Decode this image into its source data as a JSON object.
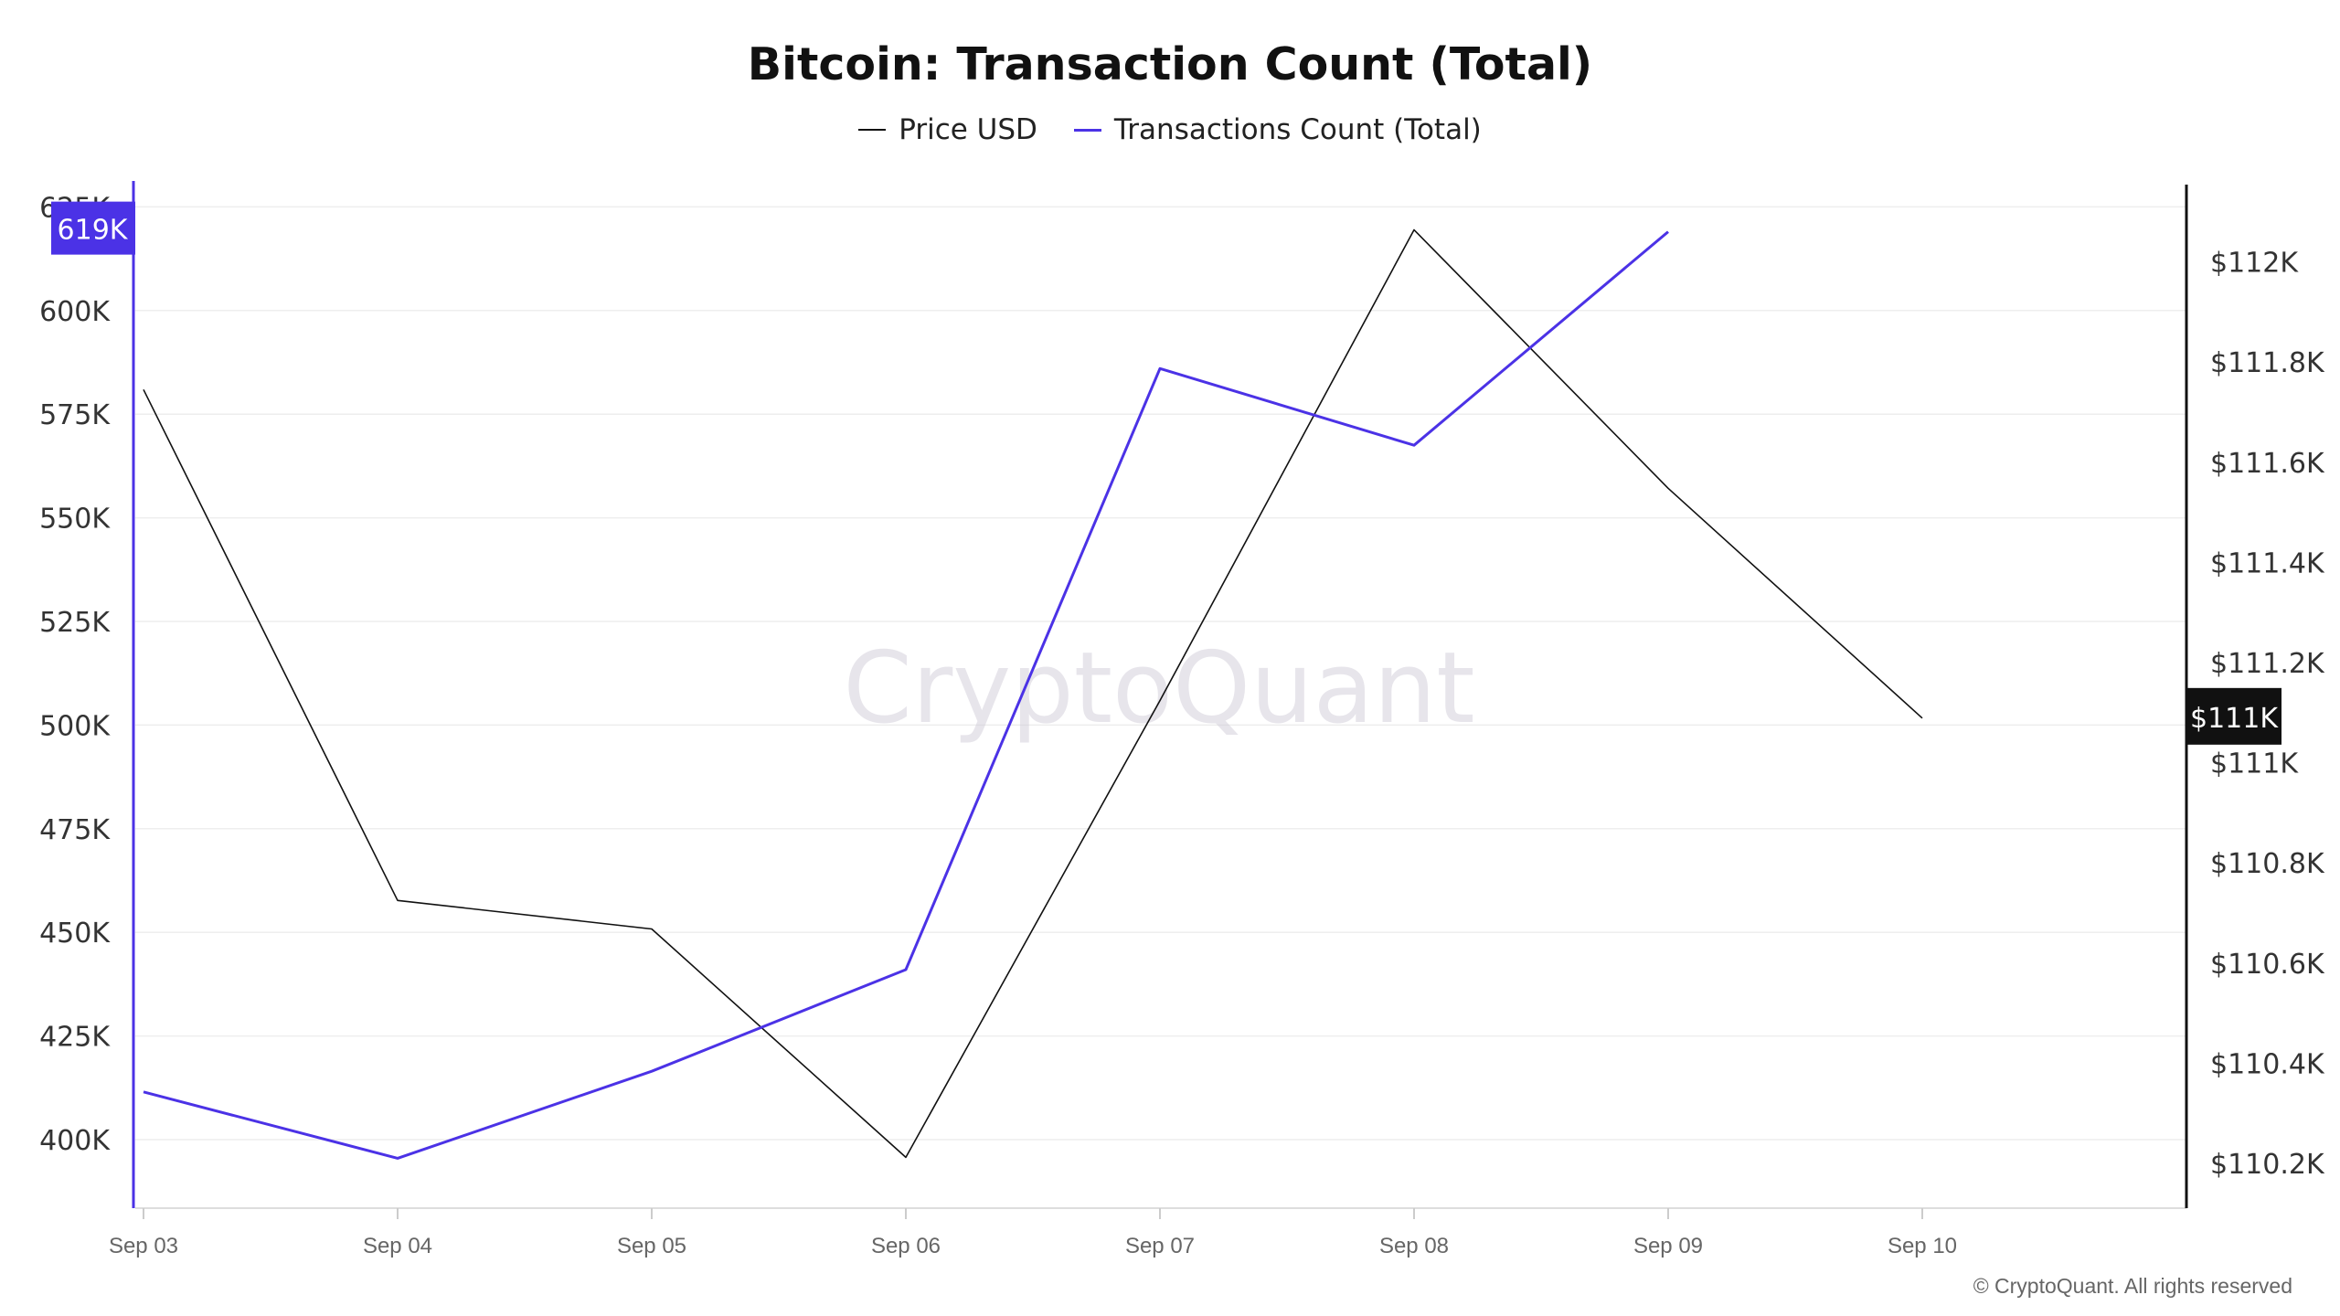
{
  "chart_data": {
    "type": "line",
    "title": "Bitcoin: Transaction Count (Total)",
    "categories": [
      "Sep 03",
      "Sep 04",
      "Sep 05",
      "Sep 06",
      "Sep 07",
      "Sep 08",
      "Sep 09",
      "Sep 10"
    ],
    "series": [
      {
        "name": "Price USD",
        "axis": "right",
        "color": "#111111",
        "values": [
          111745,
          110725,
          110668,
          110212,
          111124,
          112064,
          111548,
          111089
        ]
      },
      {
        "name": "Transactions Count (Total)",
        "axis": "left",
        "color": "#4b32e6",
        "values": [
          411500,
          395500,
          416500,
          441000,
          586000,
          567500,
          619000,
          null
        ]
      }
    ],
    "y_left": {
      "ticks": [
        400000,
        425000,
        450000,
        475000,
        500000,
        525000,
        550000,
        575000,
        600000,
        625000
      ],
      "tick_labels": [
        "400K",
        "425K",
        "450K",
        "475K",
        "500K",
        "525K",
        "550K",
        "575K",
        "600K",
        "625K"
      ],
      "range": [
        383500,
        625000
      ]
    },
    "y_right": {
      "ticks": [
        110200,
        110400,
        110600,
        110800,
        111000,
        111200,
        111400,
        111600,
        111800,
        112000
      ],
      "tick_labels": [
        "$110.2K",
        "$110.4K",
        "$110.6K",
        "$110.8K",
        "$111K",
        "$111.2K",
        "$111.4K",
        "$111.6K",
        "$111.8K",
        "$112K"
      ],
      "range": [
        110115,
        112208
      ]
    },
    "badges": {
      "left": {
        "label": "619K",
        "value": 619000,
        "color": "#4b32e6"
      },
      "right": {
        "label": "$111K",
        "value": 111089,
        "color": "#111111"
      }
    },
    "grid": true,
    "legend_position": "top-center",
    "watermark": "CryptoQuant",
    "copyright": "© CryptoQuant. All rights reserved"
  }
}
